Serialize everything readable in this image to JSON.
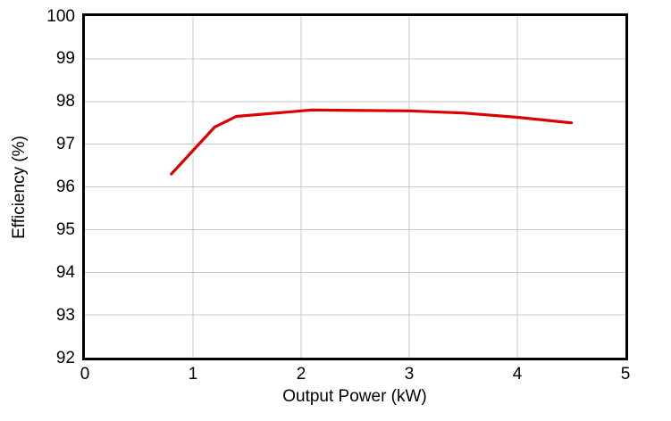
{
  "chart_data": {
    "type": "line",
    "title": "",
    "xlabel": "Output Power (kW)",
    "ylabel": "Efficiency (%)",
    "xlim": [
      0,
      5
    ],
    "ylim": [
      92,
      100
    ],
    "x_ticks": [
      0,
      1,
      2,
      3,
      4,
      5
    ],
    "y_ticks": [
      92,
      93,
      94,
      95,
      96,
      97,
      98,
      99,
      100
    ],
    "grid": true,
    "legend_position": "none",
    "series": [
      {
        "name": "Efficiency",
        "color": "#dd0000",
        "x": [
          0.8,
          1.2,
          1.4,
          2.1,
          3.0,
          3.5,
          4.0,
          4.5
        ],
        "y": [
          96.3,
          97.4,
          97.65,
          97.8,
          97.78,
          97.73,
          97.63,
          97.5
        ]
      }
    ]
  },
  "colors": {
    "background": "#ffffff",
    "axis_border": "#000000",
    "gridline": "#c8c8c8",
    "text": "#000000",
    "line": "#dd0000"
  }
}
